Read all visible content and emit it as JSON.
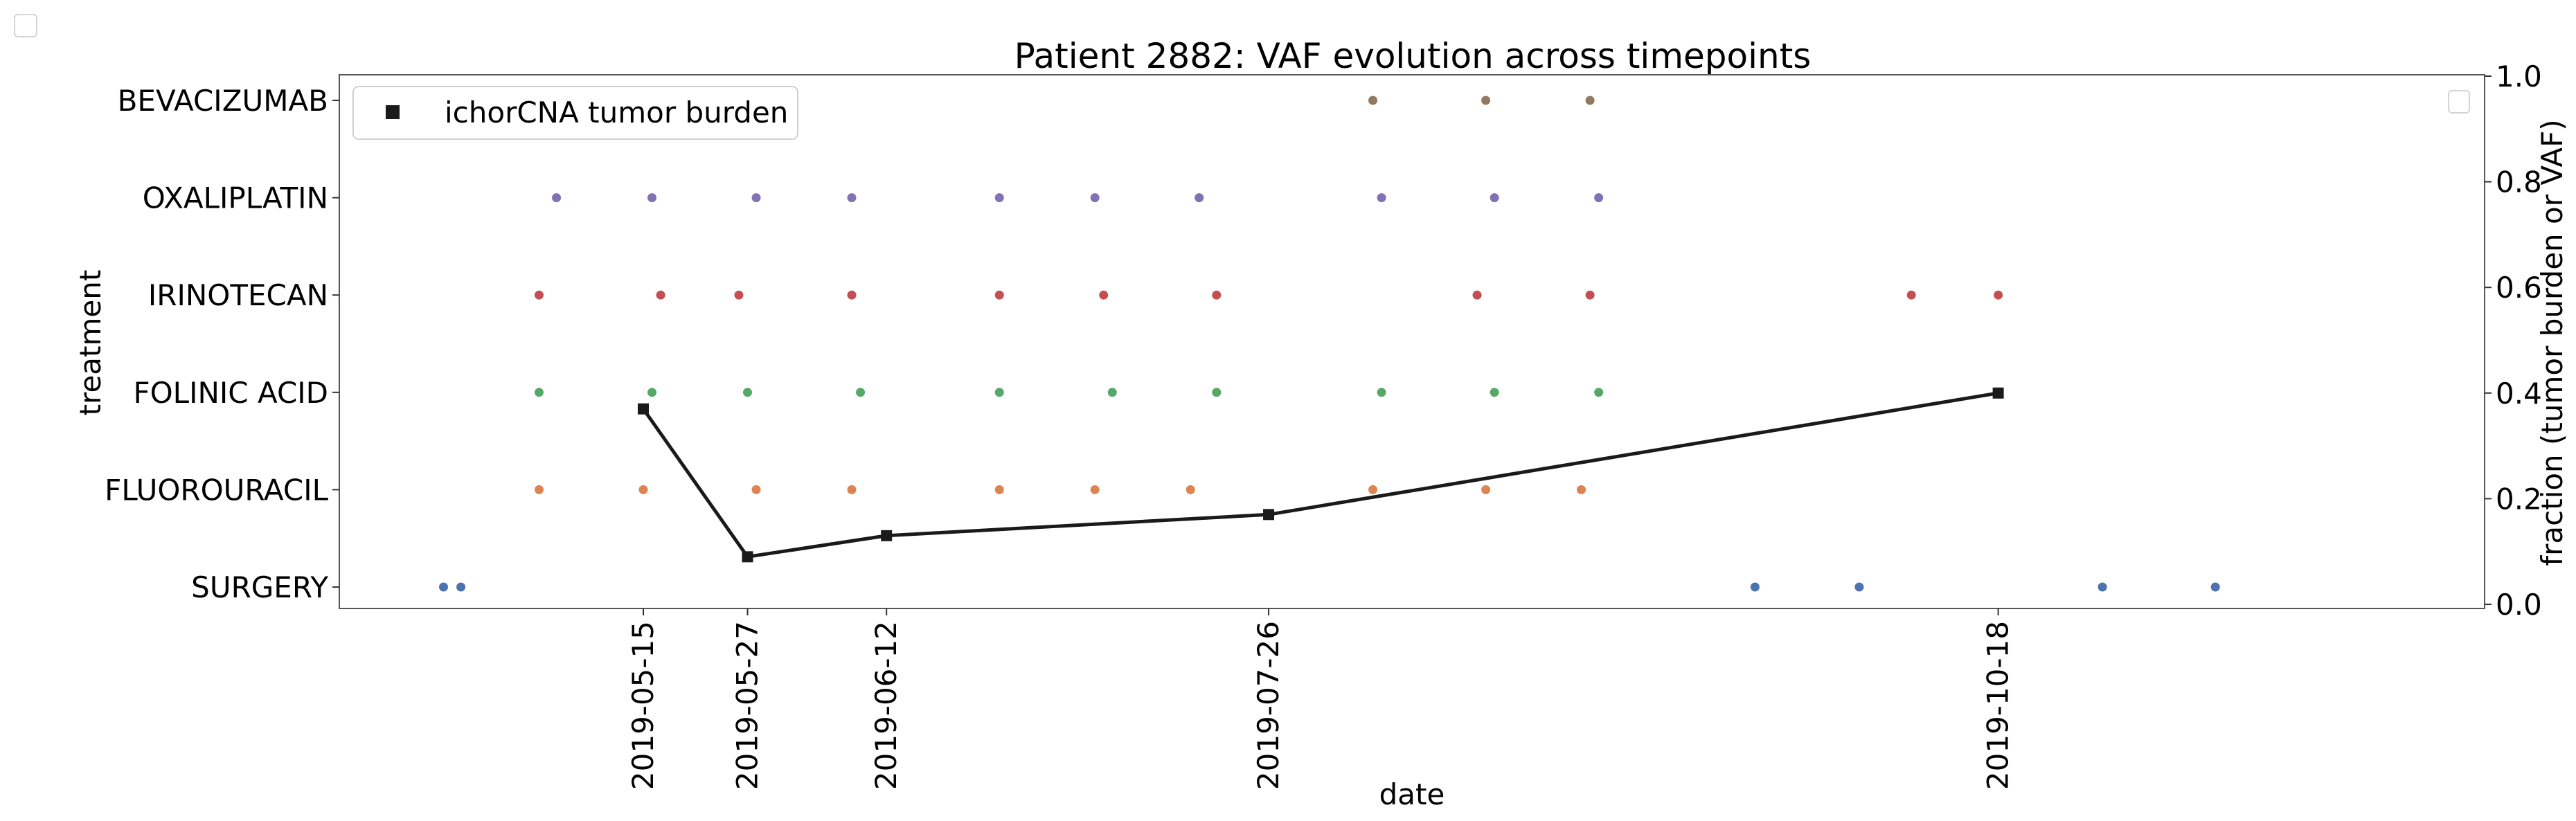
{
  "chart_data": {
    "type": "scatter",
    "title": "Patient 2882: VAF evolution across timepoints",
    "xlabel": "date",
    "ylabel_left": "treatment",
    "ylabel_right": "fraction (tumor burden or VAF)",
    "x_ticks": [
      "2019-05-15",
      "2019-05-27",
      "2019-06-12",
      "2019-07-26",
      "2019-10-18"
    ],
    "x_range": [
      "2019-04-10",
      "2019-12-13"
    ],
    "categories": [
      "SURGERY",
      "FLUOROURACIL",
      "FOLINIC ACID",
      "IRINOTECAN",
      "OXALIPLATIN",
      "BEVACIZUMAB"
    ],
    "right_ylim": [
      0.0,
      1.0
    ],
    "right_yticks": [
      0.0,
      0.2,
      0.4,
      0.6,
      0.8,
      1.0
    ],
    "grid": false,
    "legend": {
      "position": "top-left",
      "entries": [
        "ichorCNA tumor burden"
      ]
    },
    "colors": {
      "SURGERY": "#4c72b0",
      "FLUOROURACIL": "#dd8452",
      "FOLINIC ACID": "#55a868",
      "IRINOTECAN": "#c44e52",
      "OXALIPLATIN": "#8172b3",
      "BEVACIZUMAB": "#937860",
      "tumor_burden": "#1a1a1a"
    },
    "treatments": [
      {
        "name": "SURGERY",
        "dates": [
          "2019-04-22",
          "2019-04-24",
          "2019-09-20",
          "2019-10-02",
          "2019-10-30",
          "2019-11-12"
        ]
      },
      {
        "name": "FLUOROURACIL",
        "dates": [
          "2019-05-03",
          "2019-05-15",
          "2019-05-28",
          "2019-06-08",
          "2019-06-25",
          "2019-07-06",
          "2019-07-17",
          "2019-08-07",
          "2019-08-20",
          "2019-08-31"
        ]
      },
      {
        "name": "FOLINIC ACID",
        "dates": [
          "2019-05-03",
          "2019-05-16",
          "2019-05-27",
          "2019-06-09",
          "2019-06-25",
          "2019-07-08",
          "2019-07-20",
          "2019-08-08",
          "2019-08-21",
          "2019-09-02"
        ]
      },
      {
        "name": "IRINOTECAN",
        "dates": [
          "2019-05-03",
          "2019-05-17",
          "2019-05-26",
          "2019-06-08",
          "2019-06-25",
          "2019-07-07",
          "2019-07-20",
          "2019-08-19",
          "2019-09-01",
          "2019-10-08",
          "2019-10-18"
        ]
      },
      {
        "name": "OXALIPLATIN",
        "dates": [
          "2019-05-05",
          "2019-05-16",
          "2019-05-28",
          "2019-06-08",
          "2019-06-25",
          "2019-07-06",
          "2019-07-18",
          "2019-08-08",
          "2019-08-21",
          "2019-09-02"
        ]
      },
      {
        "name": "BEVACIZUMAB",
        "dates": [
          "2019-08-07",
          "2019-08-20",
          "2019-09-01"
        ]
      }
    ],
    "series": [
      {
        "name": "ichorCNA tumor burden",
        "x": [
          "2019-05-15",
          "2019-05-27",
          "2019-06-12",
          "2019-07-26",
          "2019-10-18"
        ],
        "y": [
          0.37,
          0.09,
          0.13,
          0.17,
          0.4
        ]
      }
    ]
  }
}
